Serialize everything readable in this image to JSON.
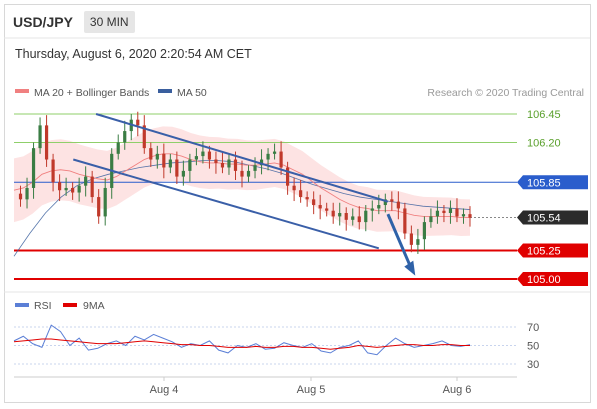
{
  "header": {
    "symbol": "USD/JPY",
    "timeframe": "30 MIN",
    "datetime": "Thursday, August 6, 2020 2:20:54 AM CET"
  },
  "legend": {
    "ma20_label": "MA 20 + Bollinger Bands",
    "ma50_label": "MA 50",
    "credit": "Research © 2020 Trading Central"
  },
  "colors": {
    "ma20": "#f08080",
    "ma50": "#3a5f9e",
    "bands": "#fde3e3",
    "candle_up": "#3a7d44",
    "candle_down": "#c0392b",
    "support": "#e00000",
    "resistance_green": "#8fcf6a",
    "pivot_blue": "#2a5dcc",
    "channel": "#3a5fa8",
    "arrow": "#2f62a8",
    "rsi": "#5b7fd6",
    "rsi_ma": "#e00000"
  },
  "chart_data": [
    {
      "type": "line",
      "title": "USD/JPY",
      "x_ticks": [
        "Aug 4",
        "Aug 5",
        "Aug 6"
      ],
      "ylim": [
        104.9,
        106.6
      ],
      "levels": [
        {
          "value": 106.45,
          "label": "106.45",
          "kind": "resistance"
        },
        {
          "value": 106.2,
          "label": "106.20",
          "kind": "resistance"
        },
        {
          "value": 105.85,
          "label": "105.85",
          "kind": "pivot"
        },
        {
          "value": 105.54,
          "label": "105.54",
          "kind": "last"
        },
        {
          "value": 105.25,
          "label": "105.25",
          "kind": "support"
        },
        {
          "value": 105.0,
          "label": "105.00",
          "kind": "support"
        }
      ],
      "price_series": [
        105.75,
        105.7,
        105.8,
        106.15,
        106.35,
        106.05,
        105.85,
        105.78,
        105.8,
        105.76,
        105.82,
        105.9,
        105.72,
        105.55,
        105.8,
        106.1,
        106.2,
        106.3,
        106.4,
        106.35,
        106.15,
        106.05,
        106.1,
        105.98,
        106.05,
        105.9,
        105.95,
        106.05,
        106.08,
        106.12,
        106.05,
        106.02,
        105.98,
        106.05,
        105.95,
        105.9,
        105.95,
        106.0,
        106.05,
        106.1,
        106.12,
        105.98,
        105.82,
        105.78,
        105.72,
        105.7,
        105.65,
        105.62,
        105.6,
        105.55,
        105.58,
        105.52,
        105.55,
        105.5,
        105.6,
        105.62,
        105.65,
        105.7,
        105.68,
        105.62,
        105.4,
        105.3,
        105.35,
        105.5,
        105.55,
        105.6,
        105.58,
        105.62,
        105.55,
        105.57,
        105.54
      ],
      "ma20_series": [
        105.78,
        105.8,
        105.85,
        105.92,
        105.95,
        105.96,
        105.95,
        105.92,
        105.9,
        105.88,
        105.87,
        105.9,
        105.95,
        106.0,
        106.05,
        106.08,
        106.1,
        106.1,
        106.08,
        106.05,
        106.03,
        106.02,
        106.02,
        106.01,
        106.01,
        106.0,
        106.0,
        106.01,
        106.02,
        106.0,
        105.96,
        105.92,
        105.86,
        105.8,
        105.75,
        105.7,
        105.66,
        105.63,
        105.62,
        105.6,
        105.6,
        105.6,
        105.58,
        105.56,
        105.55,
        105.55,
        105.55,
        105.55,
        105.54,
        105.54
      ],
      "ma50_series": [
        105.2,
        105.4,
        105.58,
        105.72,
        105.82,
        105.88,
        105.92,
        105.95,
        105.98,
        106.0,
        106.02,
        106.03,
        106.04,
        106.04,
        106.03,
        106.0,
        105.97,
        105.93,
        105.88,
        105.83,
        105.79,
        105.75,
        105.72,
        105.7,
        105.68,
        105.66,
        105.64,
        105.63,
        105.62,
        105.61
      ],
      "channel_upper": [
        [
          0.18,
          106.45
        ],
        [
          0.82,
          105.68
        ]
      ],
      "channel_lower": [
        [
          0.13,
          106.05
        ],
        [
          0.8,
          105.27
        ]
      ],
      "arrow": [
        [
          0.82,
          105.57
        ],
        [
          0.88,
          105.03
        ]
      ]
    },
    {
      "type": "line",
      "title": "RSI",
      "legend": [
        "RSI",
        "9MA"
      ],
      "yticks": [
        "70",
        "50",
        "30"
      ],
      "ylim": [
        20,
        80
      ],
      "rsi_series": [
        55,
        60,
        52,
        48,
        72,
        65,
        50,
        58,
        45,
        47,
        52,
        55,
        50,
        60,
        56,
        62,
        58,
        54,
        48,
        52,
        50,
        55,
        45,
        42,
        50,
        48,
        52,
        46,
        47,
        53,
        50,
        48,
        52,
        44,
        42,
        48,
        50,
        55,
        42,
        40,
        50,
        58,
        52,
        48,
        50,
        52,
        55,
        50,
        49,
        51
      ],
      "ma_series": [
        54,
        55,
        56,
        57,
        57,
        56,
        55,
        54,
        53,
        52,
        52,
        52,
        53,
        54,
        55,
        54,
        53,
        52,
        51,
        51,
        50,
        50,
        49,
        48,
        48,
        48,
        49,
        48,
        48,
        49,
        49,
        48,
        48,
        47,
        46,
        47,
        48,
        50,
        49,
        48,
        49,
        50,
        51,
        51,
        50,
        50,
        51,
        51,
        50,
        50
      ]
    }
  ]
}
